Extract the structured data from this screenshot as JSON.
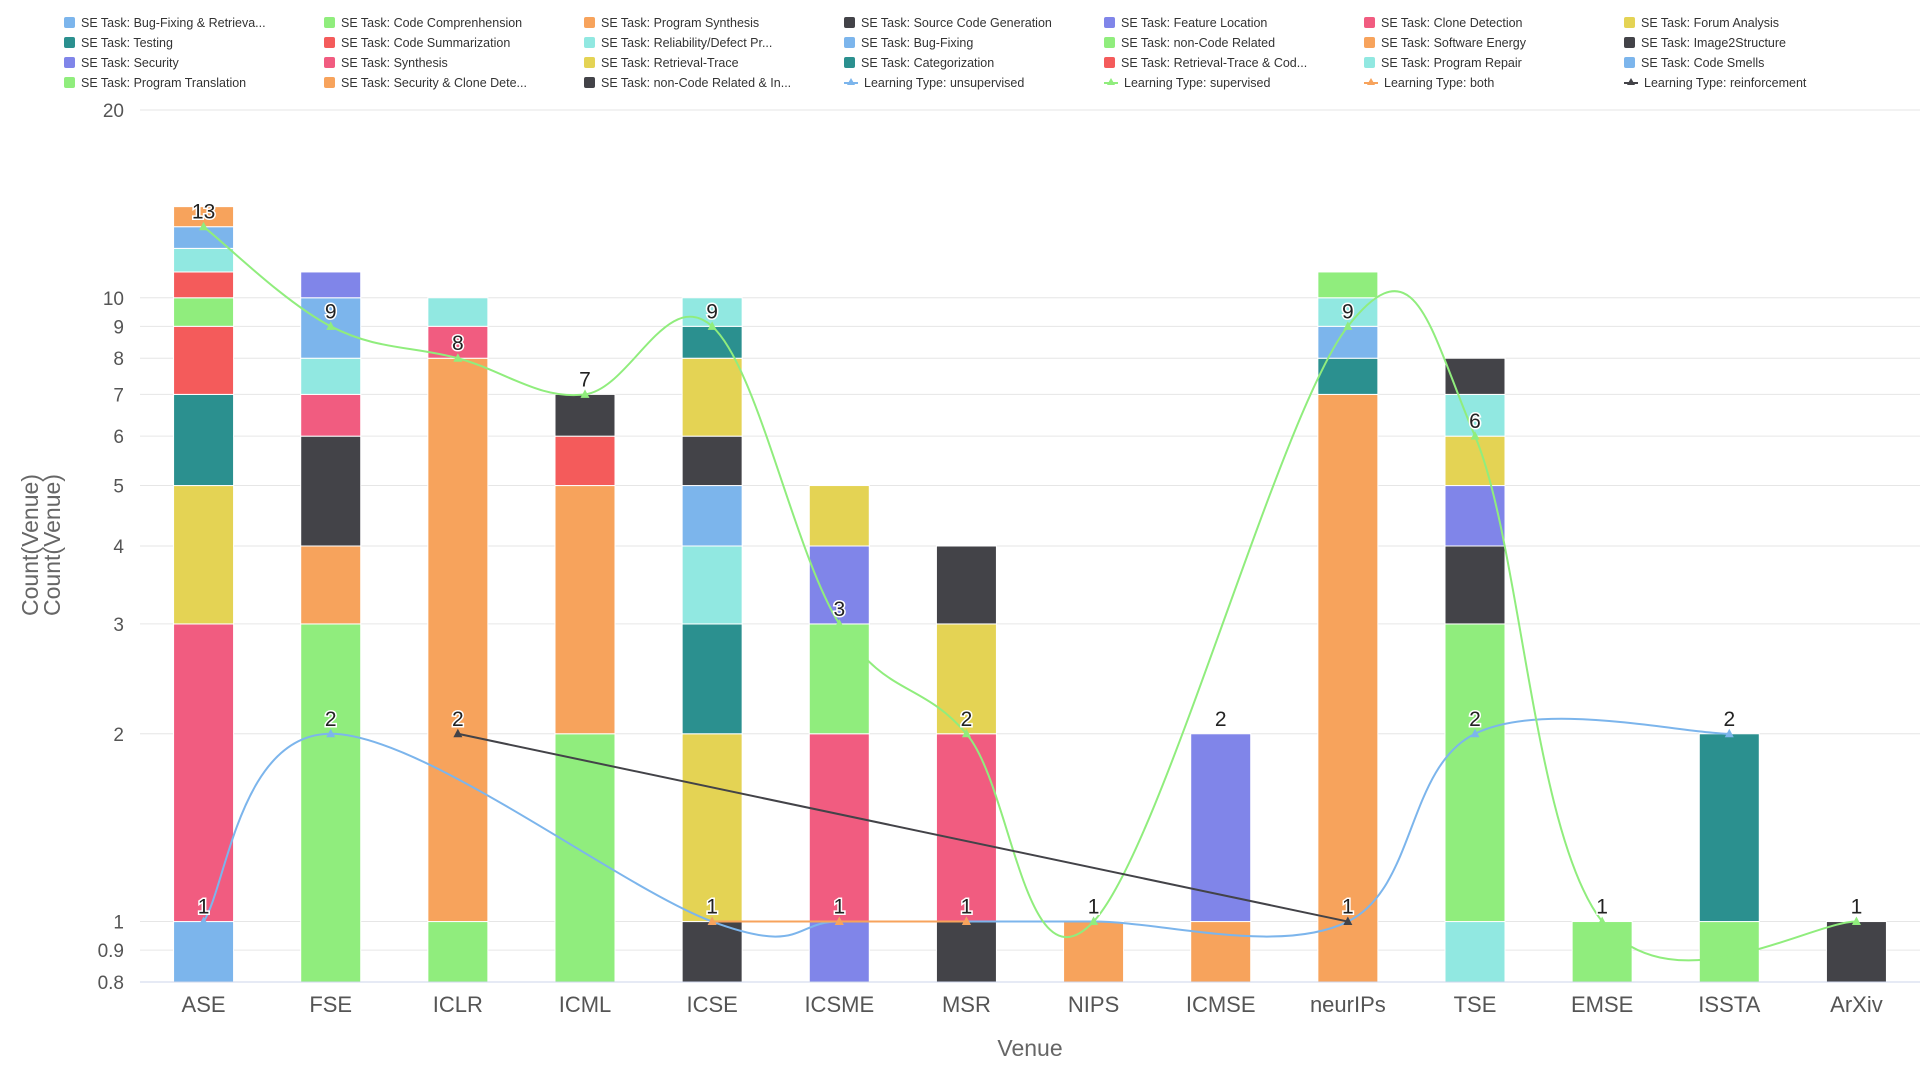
{
  "chart_data": {
    "type": "bar",
    "stacked": true,
    "y_scale": "log",
    "xlabel": "Venue",
    "ylabel": "Count(Venue)",
    "ylabel2": "Count(Venue)",
    "ylim": [
      0.8,
      20
    ],
    "yticks": [
      {
        "value": 0.8,
        "label": "0.8"
      },
      {
        "value": 0.9,
        "label": "0.9"
      },
      {
        "value": 1,
        "label": "1"
      },
      {
        "value": 2,
        "label": "2"
      },
      {
        "value": 3,
        "label": "3"
      },
      {
        "value": 4,
        "label": "4"
      },
      {
        "value": 5,
        "label": "5"
      },
      {
        "value": 6,
        "label": "6"
      },
      {
        "value": 7,
        "label": "7"
      },
      {
        "value": 8,
        "label": "8"
      },
      {
        "value": 9,
        "label": "9"
      },
      {
        "value": 10,
        "label": "10"
      },
      {
        "value": 20,
        "label": "20"
      }
    ],
    "grid": true,
    "legend_position": "top",
    "categories": [
      "ASE",
      "FSE",
      "ICLR",
      "ICML",
      "ICSE",
      "ICSME",
      "MSR",
      "NIPS",
      "ICMSE",
      "neurIPs",
      "TSE",
      "EMSE",
      "ISSTA",
      "ArXiv"
    ],
    "legend": [
      {
        "label": "SE Task: Bug-Fixing & Retrieva...",
        "color": "#7cb5ec",
        "kind": "bar"
      },
      {
        "label": "SE Task: Code Comprenhension",
        "color": "#90ed7d",
        "kind": "bar"
      },
      {
        "label": "SE Task: Program Synthesis",
        "color": "#f7a35c",
        "kind": "bar"
      },
      {
        "label": "SE Task: Source Code Generation",
        "color": "#434348",
        "kind": "bar"
      },
      {
        "label": "SE Task: Feature Location",
        "color": "#8085e9",
        "kind": "bar"
      },
      {
        "label": "SE Task: Clone Detection",
        "color": "#f15c80",
        "kind": "bar"
      },
      {
        "label": "SE Task: Forum Analysis",
        "color": "#e4d354",
        "kind": "bar"
      },
      {
        "label": "SE Task: Testing",
        "color": "#2b908f",
        "kind": "bar"
      },
      {
        "label": "SE Task: Code Summarization",
        "color": "#f45b5b",
        "kind": "bar"
      },
      {
        "label": "SE Task: Reliability/Defect Pr...",
        "color": "#91e8e1",
        "kind": "bar"
      },
      {
        "label": "SE Task: Bug-Fixing",
        "color": "#7cb5ec",
        "kind": "bar"
      },
      {
        "label": "SE Task: non-Code Related",
        "color": "#90ed7d",
        "kind": "bar"
      },
      {
        "label": "SE Task: Software Energy",
        "color": "#f7a35c",
        "kind": "bar"
      },
      {
        "label": "SE Task: Image2Structure",
        "color": "#434348",
        "kind": "bar"
      },
      {
        "label": "SE Task: Security",
        "color": "#8085e9",
        "kind": "bar"
      },
      {
        "label": "SE Task: Synthesis",
        "color": "#f15c80",
        "kind": "bar"
      },
      {
        "label": "SE Task: Retrieval-Trace",
        "color": "#e4d354",
        "kind": "bar"
      },
      {
        "label": "SE Task: Categorization",
        "color": "#2b908f",
        "kind": "bar"
      },
      {
        "label": "SE Task: Retrieval-Trace & Cod...",
        "color": "#f45b5b",
        "kind": "bar"
      },
      {
        "label": "SE Task: Program Repair",
        "color": "#91e8e1",
        "kind": "bar"
      },
      {
        "label": "SE Task: Code Smells",
        "color": "#7cb5ec",
        "kind": "bar"
      },
      {
        "label": "SE Task: Program Translation",
        "color": "#90ed7d",
        "kind": "bar"
      },
      {
        "label": "SE Task: Security & Clone Dete...",
        "color": "#f7a35c",
        "kind": "bar"
      },
      {
        "label": "SE Task: non-Code Related & In...",
        "color": "#434348",
        "kind": "bar"
      },
      {
        "label": "Learning Type: unsupervised",
        "color": "#7cb5ec",
        "kind": "line"
      },
      {
        "label": "Learning Type: supervised",
        "color": "#90ed7d",
        "kind": "line"
      },
      {
        "label": "Learning Type: both",
        "color": "#f7a35c",
        "kind": "line"
      },
      {
        "label": "Learning Type: reinforcement",
        "color": "#434348",
        "kind": "line"
      }
    ],
    "stacks": [
      {
        "category": "ASE",
        "segments": [
          {
            "value": 1,
            "color": "#7cb5ec"
          },
          {
            "value": 2,
            "color": "#f15c80"
          },
          {
            "value": 2,
            "color": "#e4d354"
          },
          {
            "value": 2,
            "color": "#2b908f"
          },
          {
            "value": 2,
            "color": "#f45b5b"
          },
          {
            "value": 1,
            "color": "#90ed7d"
          },
          {
            "value": 1,
            "color": "#f45b5b"
          },
          {
            "value": 1,
            "color": "#91e8e1"
          },
          {
            "value": 1,
            "color": "#7cb5ec"
          },
          {
            "value": 1,
            "color": "#f7a35c"
          }
        ]
      },
      {
        "category": "FSE",
        "segments": [
          {
            "value": 3,
            "color": "#90ed7d"
          },
          {
            "value": 1,
            "color": "#f7a35c"
          },
          {
            "value": 2,
            "color": "#434348"
          },
          {
            "value": 1,
            "color": "#f15c80"
          },
          {
            "value": 1,
            "color": "#91e8e1"
          },
          {
            "value": 2,
            "color": "#7cb5ec"
          },
          {
            "value": 1,
            "color": "#8085e9"
          }
        ]
      },
      {
        "category": "ICLR",
        "segments": [
          {
            "value": 1,
            "color": "#90ed7d"
          },
          {
            "value": 7,
            "color": "#f7a35c"
          },
          {
            "value": 1,
            "color": "#f15c80"
          },
          {
            "value": 1,
            "color": "#91e8e1"
          }
        ]
      },
      {
        "category": "ICML",
        "segments": [
          {
            "value": 2,
            "color": "#90ed7d"
          },
          {
            "value": 3,
            "color": "#f7a35c"
          },
          {
            "value": 1,
            "color": "#f45b5b"
          },
          {
            "value": 1,
            "color": "#434348"
          }
        ]
      },
      {
        "category": "ICSE",
        "segments": [
          {
            "value": 1,
            "color": "#434348"
          },
          {
            "value": 1,
            "color": "#e4d354"
          },
          {
            "value": 1,
            "color": "#2b908f"
          },
          {
            "value": 1,
            "color": "#91e8e1"
          },
          {
            "value": 1,
            "color": "#7cb5ec"
          },
          {
            "value": 1,
            "color": "#434348"
          },
          {
            "value": 2,
            "color": "#e4d354"
          },
          {
            "value": 1,
            "color": "#2b908f"
          },
          {
            "value": 1,
            "color": "#91e8e1"
          }
        ]
      },
      {
        "category": "ICSME",
        "segments": [
          {
            "value": 1,
            "color": "#8085e9"
          },
          {
            "value": 1,
            "color": "#f15c80"
          },
          {
            "value": 1,
            "color": "#90ed7d"
          },
          {
            "value": 1,
            "color": "#8085e9"
          },
          {
            "value": 1,
            "color": "#e4d354"
          }
        ]
      },
      {
        "category": "MSR",
        "segments": [
          {
            "value": 1,
            "color": "#434348"
          },
          {
            "value": 1,
            "color": "#f15c80"
          },
          {
            "value": 1,
            "color": "#e4d354"
          },
          {
            "value": 1,
            "color": "#434348"
          }
        ]
      },
      {
        "category": "NIPS",
        "segments": [
          {
            "value": 1,
            "color": "#f7a35c"
          }
        ]
      },
      {
        "category": "ICMSE",
        "segments": [
          {
            "value": 1,
            "color": "#f7a35c"
          },
          {
            "value": 1,
            "color": "#8085e9"
          }
        ]
      },
      {
        "category": "neurIPs",
        "segments": [
          {
            "value": 7,
            "color": "#f7a35c"
          },
          {
            "value": 1,
            "color": "#2b908f"
          },
          {
            "value": 1,
            "color": "#7cb5ec"
          },
          {
            "value": 1,
            "color": "#91e8e1"
          },
          {
            "value": 1,
            "color": "#90ed7d"
          }
        ]
      },
      {
        "category": "TSE",
        "segments": [
          {
            "value": 1,
            "color": "#91e8e1"
          },
          {
            "value": 2,
            "color": "#90ed7d"
          },
          {
            "value": 1,
            "color": "#434348"
          },
          {
            "value": 1,
            "color": "#8085e9"
          },
          {
            "value": 1,
            "color": "#e4d354"
          },
          {
            "value": 1,
            "color": "#91e8e1"
          },
          {
            "value": 1,
            "color": "#434348"
          }
        ]
      },
      {
        "category": "EMSE",
        "segments": [
          {
            "value": 1,
            "color": "#90ed7d"
          }
        ]
      },
      {
        "category": "ISSTA",
        "segments": [
          {
            "value": 1,
            "color": "#90ed7d"
          },
          {
            "value": 1,
            "color": "#2b908f"
          }
        ]
      },
      {
        "category": "ArXiv",
        "segments": [
          {
            "value": 1,
            "color": "#434348"
          }
        ]
      }
    ],
    "series": [
      {
        "name": "Learning Type: unsupervised",
        "type": "spline",
        "color": "#7cb5ec",
        "points": [
          {
            "x": "ASE",
            "y": 1
          },
          {
            "x": "FSE",
            "y": 2
          },
          {
            "x": "ICSE",
            "y": 1
          },
          {
            "x": "ICSME",
            "y": 1
          },
          {
            "x": "MSR",
            "y": 1
          },
          {
            "x": "NIPS",
            "y": 1
          },
          {
            "x": "neurIPs",
            "y": 1
          },
          {
            "x": "TSE",
            "y": 2
          },
          {
            "x": "ISSTA",
            "y": 2
          }
        ]
      },
      {
        "name": "Learning Type: supervised",
        "type": "spline",
        "color": "#90ed7d",
        "points": [
          {
            "x": "ASE",
            "y": 13
          },
          {
            "x": "FSE",
            "y": 9
          },
          {
            "x": "ICLR",
            "y": 8
          },
          {
            "x": "ICML",
            "y": 7
          },
          {
            "x": "ICSE",
            "y": 9
          },
          {
            "x": "ICSME",
            "y": 3
          },
          {
            "x": "MSR",
            "y": 2
          },
          {
            "x": "NIPS",
            "y": 1
          },
          {
            "x": "neurIPs",
            "y": 9
          },
          {
            "x": "TSE",
            "y": 6
          },
          {
            "x": "EMSE",
            "y": 1
          },
          {
            "x": "ArXiv",
            "y": 1
          }
        ]
      },
      {
        "name": "Learning Type: both",
        "type": "line",
        "color": "#f7a35c",
        "points": [
          {
            "x": "ICSE",
            "y": 1
          },
          {
            "x": "ICSME",
            "y": 1
          },
          {
            "x": "MSR",
            "y": 1
          }
        ]
      },
      {
        "name": "Learning Type: reinforcement",
        "type": "line",
        "color": "#434348",
        "points": [
          {
            "x": "ICLR",
            "y": 2
          },
          {
            "x": "neurIPs",
            "y": 1
          }
        ]
      }
    ],
    "data_labels": [
      {
        "x": "ASE",
        "y": 13,
        "text": "13"
      },
      {
        "x": "ASE",
        "y": 1,
        "text": "1"
      },
      {
        "x": "FSE",
        "y": 9,
        "text": "9"
      },
      {
        "x": "FSE",
        "y": 2,
        "text": "2"
      },
      {
        "x": "ICLR",
        "y": 8,
        "text": "8"
      },
      {
        "x": "ICLR",
        "y": 2,
        "text": "2"
      },
      {
        "x": "ICML",
        "y": 7,
        "text": "7"
      },
      {
        "x": "ICSE",
        "y": 9,
        "text": "9"
      },
      {
        "x": "ICSE",
        "y": 1,
        "text": "1"
      },
      {
        "x": "ICSME",
        "y": 3,
        "text": "3"
      },
      {
        "x": "ICSME",
        "y": 1,
        "text": "1"
      },
      {
        "x": "MSR",
        "y": 2,
        "text": "2"
      },
      {
        "x": "MSR",
        "y": 1,
        "text": "1"
      },
      {
        "x": "NIPS",
        "y": 1,
        "text": "1"
      },
      {
        "x": "ICMSE",
        "y": 2,
        "text": "2"
      },
      {
        "x": "neurIPs",
        "y": 9,
        "text": "9"
      },
      {
        "x": "neurIPs",
        "y": 1,
        "text": "1"
      },
      {
        "x": "TSE",
        "y": 6,
        "text": "6"
      },
      {
        "x": "TSE",
        "y": 2,
        "text": "2"
      },
      {
        "x": "EMSE",
        "y": 1,
        "text": "1"
      },
      {
        "x": "ISSTA",
        "y": 2,
        "text": "2"
      },
      {
        "x": "ArXiv",
        "y": 1,
        "text": "1"
      }
    ]
  }
}
